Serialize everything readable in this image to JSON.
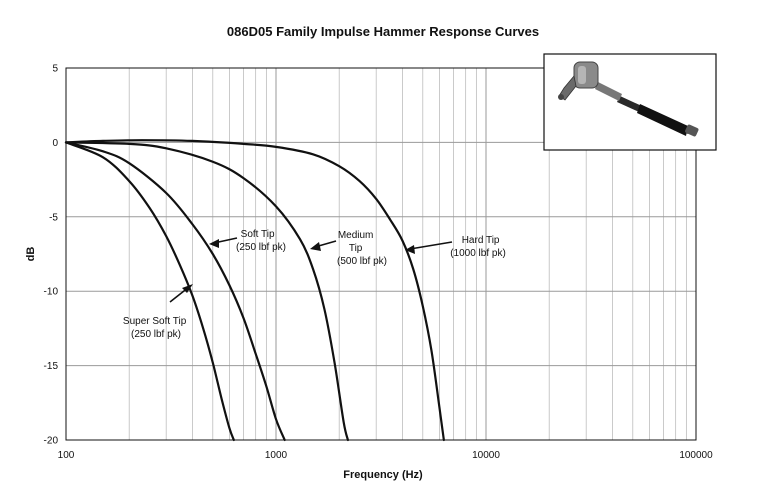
{
  "chart_data": {
    "type": "line",
    "title": "086D05 Family Impulse Hammer Response Curves",
    "xlabel": "Frequency (Hz)",
    "ylabel": "dB",
    "x_scale": "log",
    "xlim": [
      100,
      100000
    ],
    "ylim": [
      -20,
      5
    ],
    "x_ticks": [
      "100",
      "1000",
      "10000",
      "100000"
    ],
    "y_ticks": [
      "5",
      "0",
      "-5",
      "-10",
      "-15",
      "-20"
    ],
    "grid": true,
    "series": [
      {
        "name": "Super Soft Tip (250 lbf pk)",
        "x": [
          100,
          150,
          200,
          250,
          300,
          350,
          400,
          450,
          500,
          550,
          600,
          630
        ],
        "y": [
          0,
          -1.0,
          -2.6,
          -4.4,
          -6.3,
          -8.3,
          -10.3,
          -12.5,
          -14.8,
          -17.2,
          -19.2,
          -20
        ]
      },
      {
        "name": "Soft Tip (250 lbf pk)",
        "x": [
          100,
          150,
          200,
          300,
          400,
          500,
          600,
          700,
          800,
          900,
          1000,
          1100
        ],
        "y": [
          0,
          -0.6,
          -1.4,
          -3.4,
          -5.5,
          -7.5,
          -9.6,
          -11.8,
          -14.2,
          -16.4,
          -18.6,
          -20
        ]
      },
      {
        "name": "Medium Tip (500 lbf pk)",
        "x": [
          100,
          200,
          300,
          500,
          700,
          1000,
          1300,
          1500,
          1700,
          1900,
          2100,
          2200
        ],
        "y": [
          0,
          -0.1,
          -0.4,
          -1.3,
          -2.4,
          -4.3,
          -6.5,
          -8.5,
          -11.2,
          -14.8,
          -18.8,
          -20
        ]
      },
      {
        "name": "Hard Tip (1000 lbf pk)",
        "x": [
          100,
          150,
          230,
          400,
          700,
          1000,
          1500,
          2000,
          2500,
          3000,
          3500,
          4000,
          4500,
          5000,
          5500,
          6000,
          6300
        ],
        "y": [
          0,
          0.1,
          0.15,
          0.1,
          -0.1,
          -0.3,
          -0.8,
          -1.6,
          -2.6,
          -3.8,
          -5.2,
          -6.6,
          -8.5,
          -11,
          -14,
          -17.8,
          -20
        ]
      }
    ],
    "annotations": [
      {
        "lines": [
          "Super Soft Tip",
          "(250 lbf pk)"
        ]
      },
      {
        "lines": [
          "Soft Tip",
          "(250 lbf pk)"
        ]
      },
      {
        "lines": [
          "Medium",
          "Tip",
          "(500 lbf pk)"
        ]
      },
      {
        "lines": [
          "Hard Tip",
          "(1000 lbf pk)"
        ]
      }
    ]
  },
  "inset": {
    "icon": "impulse-hammer-icon"
  }
}
